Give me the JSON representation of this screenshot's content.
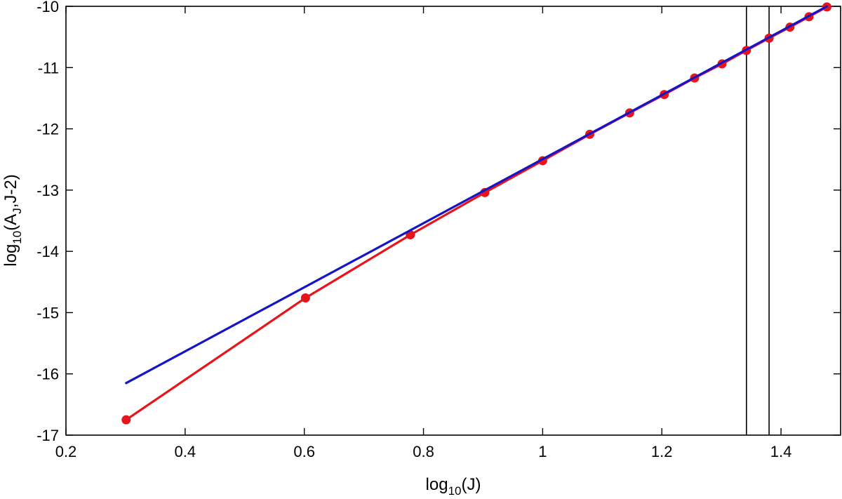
{
  "chart_data": {
    "type": "line",
    "xlabel": {
      "prefix": "log",
      "sub": "10",
      "suffix": "(J)"
    },
    "ylabel": {
      "prefix": "log",
      "sub": "10",
      "mid": "(A",
      "sub2": "J",
      "suffix": ",J-2)"
    },
    "xlim": [
      0.2,
      1.5
    ],
    "ylim": [
      -17,
      -10
    ],
    "x_ticks": [
      0.2,
      0.4,
      0.6,
      0.8,
      1.0,
      1.2,
      1.4
    ],
    "x_tick_labels": [
      "0.2",
      "0.4",
      "0.6",
      "0.8",
      "1",
      "1.2",
      "1.4"
    ],
    "y_ticks": [
      -17,
      -16,
      -15,
      -14,
      -13,
      -12,
      -11,
      -10
    ],
    "y_tick_labels": [
      "-17",
      "-16",
      "-15",
      "-14",
      "-13",
      "-12",
      "-11",
      "-10"
    ],
    "grid": false,
    "legend": "none",
    "series": [
      {
        "color": "#e8141b",
        "marker": "circle",
        "x": [
          0.301,
          0.602,
          0.778,
          0.903,
          1.0,
          1.079,
          1.146,
          1.204,
          1.255,
          1.301,
          1.342,
          1.38,
          1.415,
          1.447,
          1.477
        ],
        "y": [
          -16.75,
          -14.76,
          -13.73,
          -13.04,
          -12.52,
          -12.09,
          -11.74,
          -11.44,
          -11.17,
          -10.94,
          -10.72,
          -10.52,
          -10.34,
          -10.17,
          -10.01
        ]
      },
      {
        "color": "#1515c8",
        "marker": "none",
        "x": [
          0.301,
          1.477
        ],
        "y": [
          -16.15,
          -10.0
        ]
      }
    ],
    "vertical_lines": [
      1.342,
      1.38
    ]
  }
}
